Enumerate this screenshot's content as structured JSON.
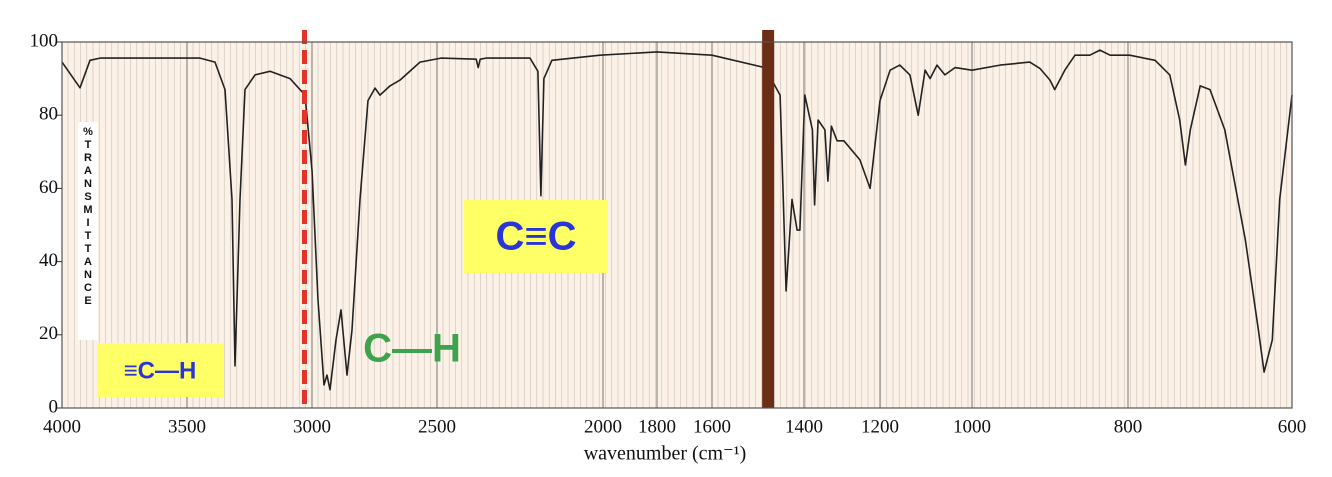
{
  "chart_data": {
    "type": "line",
    "x_label": "wavenumber (cm⁻¹)",
    "y_label": "%TRANSMITTANCE",
    "x": [
      4000,
      3928,
      3888,
      3848,
      3448,
      3388,
      3348,
      3320,
      3308,
      3288,
      3268,
      3228,
      3168,
      3088,
      3028,
      3000,
      2976,
      2952,
      2940,
      2928,
      2904,
      2884,
      2860,
      2840,
      2808,
      2776,
      2748,
      2728,
      2688,
      2648,
      2568,
      2488,
      2382,
      2376,
      2370,
      2352,
      2220,
      2196,
      2187,
      2178,
      2154,
      2009,
      1800,
      1600,
      1485,
      1452,
      1439,
      1426,
      1415,
      1409,
      1398,
      1378,
      1372,
      1363,
      1345,
      1337,
      1328,
      1313,
      1295,
      1253,
      1226,
      1200,
      1178,
      1157,
      1135,
      1117,
      1102,
      1091,
      1076,
      1059,
      1037,
      1000,
      964,
      926,
      913,
      900,
      894,
      881,
      868,
      849,
      836,
      823,
      798,
      767,
      749,
      737,
      730,
      724,
      712,
      700,
      682,
      657,
      641,
      634,
      624,
      615,
      600
    ],
    "values": [
      94.5,
      87.5,
      95,
      95.6,
      95.6,
      94.5,
      87,
      57,
      11.5,
      57,
      87,
      91,
      92,
      90,
      85.5,
      65,
      29.5,
      6.3,
      9,
      5,
      18.6,
      26.8,
      9,
      21.3,
      57,
      84,
      87.4,
      85.5,
      88,
      89.6,
      94.5,
      95.6,
      95.3,
      93,
      95.3,
      95.6,
      95.6,
      92,
      58,
      90,
      95,
      96.4,
      97.3,
      96.4,
      93,
      85.5,
      32,
      57,
      48.6,
      48.6,
      85.5,
      76,
      55.5,
      78.7,
      76,
      62,
      77,
      73,
      73,
      67.8,
      60,
      84,
      92.3,
      93.7,
      91,
      80,
      92.3,
      90,
      93.7,
      91,
      93,
      92.3,
      93.7,
      94.5,
      92.8,
      89.6,
      87,
      92.3,
      96.4,
      96.4,
      97.8,
      96.4,
      96.4,
      95,
      91,
      78.7,
      66.4,
      76,
      88,
      87,
      76,
      46,
      21.3,
      9.8,
      18.6,
      57,
      85.5
    ],
    "color": "#222222",
    "xlim": [
      4000,
      600
    ],
    "xticks": [
      4000,
      3500,
      3000,
      2500,
      2000,
      1800,
      1600,
      1400,
      1200,
      1000,
      800,
      600
    ],
    "ylim": [
      0,
      100
    ],
    "yticks": [
      0,
      20,
      40,
      60,
      80,
      100
    ],
    "markers": [
      {
        "x": 3030,
        "color": "#e3342a"
      },
      {
        "x": 1478,
        "color": "#6b2e14"
      }
    ],
    "annotations": [
      "≡C—H",
      "C≡C",
      "C—H"
    ]
  }
}
